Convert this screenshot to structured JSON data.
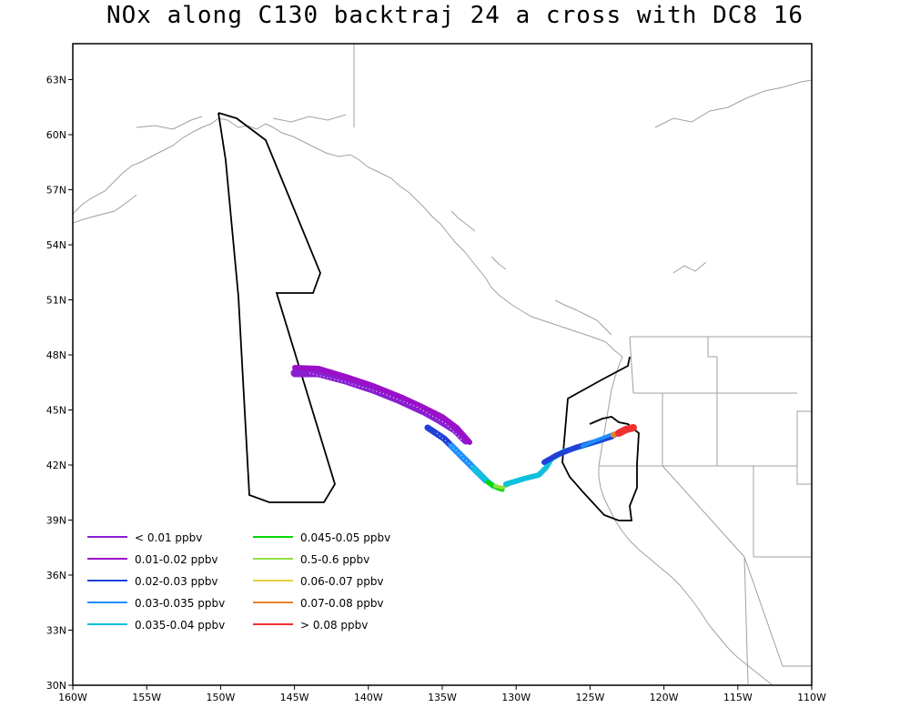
{
  "title": "NOx along C130 backtraj 24 a cross with DC8 16",
  "axes": {
    "x_ticks": [
      "160W",
      "155W",
      "150W",
      "145W",
      "140W",
      "135W",
      "130W",
      "125W",
      "120W",
      "115W",
      "110W"
    ],
    "y_ticks": [
      "30N",
      "33N",
      "36N",
      "39N",
      "42N",
      "45N",
      "48N",
      "51N",
      "54N",
      "57N",
      "60N",
      "63N"
    ],
    "lon_range": [
      -160,
      -110
    ],
    "lat_range": [
      30,
      65
    ]
  },
  "legend": [
    {
      "label": "< 0.01 ppbv",
      "color": "#8a1fd1"
    },
    {
      "label": "0.01-0.02 ppbv",
      "color": "#9a10c8"
    },
    {
      "label": "0.02-0.03 ppbv",
      "color": "#2040d8"
    },
    {
      "label": "0.03-0.035 ppbv",
      "color": "#1e90ff"
    },
    {
      "label": "0.035-0.04 ppbv",
      "color": "#10c0dc"
    },
    {
      "label": "0.045-0.05 ppbv",
      "color": "#00d800"
    },
    {
      "label": "0.5-0.6 ppbv",
      "color": "#90e040"
    },
    {
      "label": "0.06-0.07 ppbv",
      "color": "#e0d040"
    },
    {
      "label": "0.07-0.08 ppbv",
      "color": "#f08030"
    },
    {
      "label": "> 0.08 ppbv",
      "color": "#f03030"
    }
  ],
  "colors": {
    "coastline": "#a0a0a0",
    "flight_track": "#000000",
    "frame": "#000000"
  }
}
